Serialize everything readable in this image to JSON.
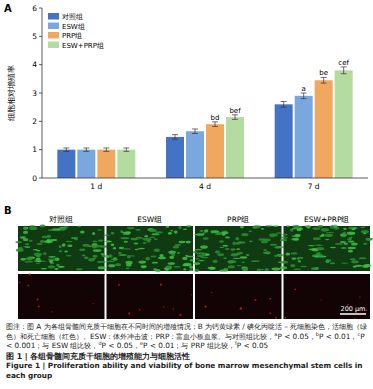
{
  "chart_data": {
    "type": "bar",
    "y_label": "细胞相对增殖率",
    "categories": [
      "1 d",
      "4 d",
      "7 d"
    ],
    "series": [
      {
        "name": "对照组",
        "color": "#4472c4",
        "values": [
          1.0,
          1.45,
          2.6
        ],
        "errors": [
          0.06,
          0.08,
          0.1
        ],
        "annotations": [
          null,
          null,
          null
        ]
      },
      {
        "name": "ESW组",
        "color": "#7aa7de",
        "values": [
          1.0,
          1.65,
          2.9
        ],
        "errors": [
          0.06,
          0.08,
          0.1
        ],
        "annotations": [
          null,
          null,
          "a"
        ]
      },
      {
        "name": "PRP组",
        "color": "#f0a860",
        "values": [
          1.0,
          1.9,
          3.45
        ],
        "errors": [
          0.06,
          0.08,
          0.1
        ],
        "annotations": [
          null,
          "bd",
          "be"
        ]
      },
      {
        "name": "ESW+PRP组",
        "color": "#b5dca0",
        "values": [
          1.0,
          2.15,
          3.8
        ],
        "errors": [
          0.06,
          0.08,
          0.12
        ],
        "annotations": [
          null,
          "bef",
          "cef"
        ]
      }
    ],
    "ylim": [
      0,
      6
    ],
    "yticks": [
      0,
      1,
      2,
      3,
      4,
      5,
      6
    ],
    "grid": false,
    "legend": "upper left"
  },
  "panel_labels": [
    "A",
    "B"
  ],
  "images": {
    "columns": [
      "对照组",
      "ESW组",
      "PRP组",
      "ESW+PRP组"
    ],
    "scale_bar": "200 μm"
  },
  "caption": {
    "note": [
      {
        "text": "图注：图 A 为各组骨髓间充质干细胞在不同时间的增殖情况；B 为钙黄绿素 / 碘化丙啶活 – 死细胞染色，活细胞（绿色）和死亡细胞（红色）。ESW：体外冲击波；PRP：富血小板血浆。与对照组比较，",
        "sup": false
      },
      {
        "text": "a",
        "sup": true
      },
      {
        "text": "P < 0.05，",
        "sup": false
      },
      {
        "text": "b",
        "sup": true
      },
      {
        "text": "P < 0.01，",
        "sup": false
      },
      {
        "text": "c",
        "sup": true
      },
      {
        "text": "P < 0.001；与 ESW 组比较，",
        "sup": false
      },
      {
        "text": "d",
        "sup": true
      },
      {
        "text": "P < 0.05，",
        "sup": false
      },
      {
        "text": "e",
        "sup": true
      },
      {
        "text": "P < 0.01；与 PRP 组比较，",
        "sup": false
      },
      {
        "text": "f",
        "sup": true
      },
      {
        "text": "P < 0.05",
        "sup": false
      }
    ],
    "title_zh": "图 1 | 各组骨髓间充质干细胞的增殖能力与细胞活性",
    "title_en": "Figure 1 | Proliferation ability and viability of bone marrow mesenchymal stem cells in each group"
  }
}
